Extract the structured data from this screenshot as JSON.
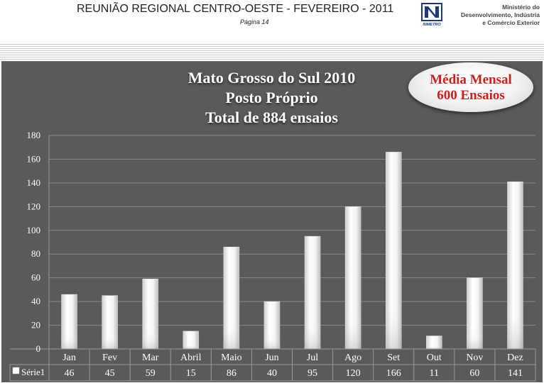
{
  "header": {
    "title": "REUNIÃO REGIONAL CENTRO-OESTE  - FEVEREIRO - 2011",
    "page_label": "Página  14",
    "logo_text": "INMETRO",
    "ministry": [
      "Ministério do",
      "Desenvolvimento, Indústria",
      "e Comércio Exterior"
    ]
  },
  "badge": {
    "line1": "Média Mensal",
    "line2": "600 Ensaios",
    "color": "#cc1f1f"
  },
  "chart_data": {
    "type": "bar",
    "title": [
      "Mato Grosso do Sul 2010",
      "Posto Próprio",
      "Total de 884 ensaios"
    ],
    "categories": [
      "Jan",
      "Fev",
      "Mar",
      "Abril",
      "Maio",
      "Jun",
      "Jul",
      "Ago",
      "Set",
      "Out",
      "Nov",
      "Dez"
    ],
    "series": [
      {
        "name": "Série1",
        "values": [
          46,
          45,
          59,
          15,
          86,
          40,
          95,
          120,
          166,
          11,
          60,
          141
        ]
      }
    ],
    "ylim": [
      0,
      180
    ],
    "yticks": [
      0,
      20,
      40,
      60,
      80,
      100,
      120,
      140,
      160,
      180
    ],
    "grid": true,
    "legend": "bottom-left data table",
    "colors": {
      "background": "#5a5a5a",
      "bar": "#ffffff",
      "text": "#ffffff"
    }
  }
}
